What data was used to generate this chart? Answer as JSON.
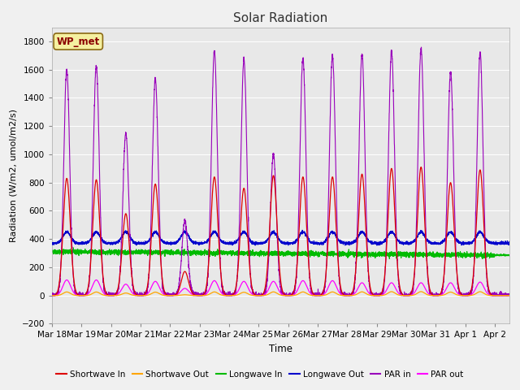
{
  "title": "Solar Radiation",
  "ylabel": "Radiation (W/m2, umol/m2/s)",
  "xlabel": "Time",
  "ylim": [
    -200,
    1900
  ],
  "yticks": [
    -200,
    0,
    200,
    400,
    600,
    800,
    1000,
    1200,
    1400,
    1600,
    1800
  ],
  "fig_bg": "#f0f0f0",
  "plot_bg": "#e8e8e8",
  "legend_box_label": "WP_met",
  "legend_box_color": "#f5f0a0",
  "legend_box_edge": "#8B6914",
  "colors": {
    "shortwave_in": "#dd0000",
    "shortwave_out": "#ffa500",
    "longwave_in": "#00bb00",
    "longwave_out": "#0000cc",
    "par_in": "#9900bb",
    "par_out": "#ff00ff"
  },
  "x_tick_labels": [
    "Mar 18",
    "Mar 19",
    "Mar 20",
    "Mar 21",
    "Mar 22",
    "Mar 23",
    "Mar 24",
    "Mar 25",
    "Mar 26",
    "Mar 27",
    "Mar 28",
    "Mar 29",
    "Mar 30",
    "Mar 31",
    "Apr 1",
    "Apr 2"
  ],
  "sw_in_peaks": [
    830,
    820,
    580,
    790,
    170,
    840,
    760,
    850,
    840,
    840,
    860,
    900,
    910,
    800,
    890
  ],
  "par_in_peaks": [
    1600,
    1620,
    1150,
    1530,
    530,
    1730,
    1670,
    1000,
    1680,
    1700,
    1710,
    1730,
    1750,
    1580,
    1720
  ],
  "par_out_peaks": [
    110,
    110,
    80,
    100,
    50,
    105,
    100,
    100,
    105,
    105,
    90,
    90,
    90,
    90,
    95
  ],
  "lw_in_base": 310,
  "lw_out_base": 370,
  "n_days": 15.5,
  "points_per_day": 288
}
